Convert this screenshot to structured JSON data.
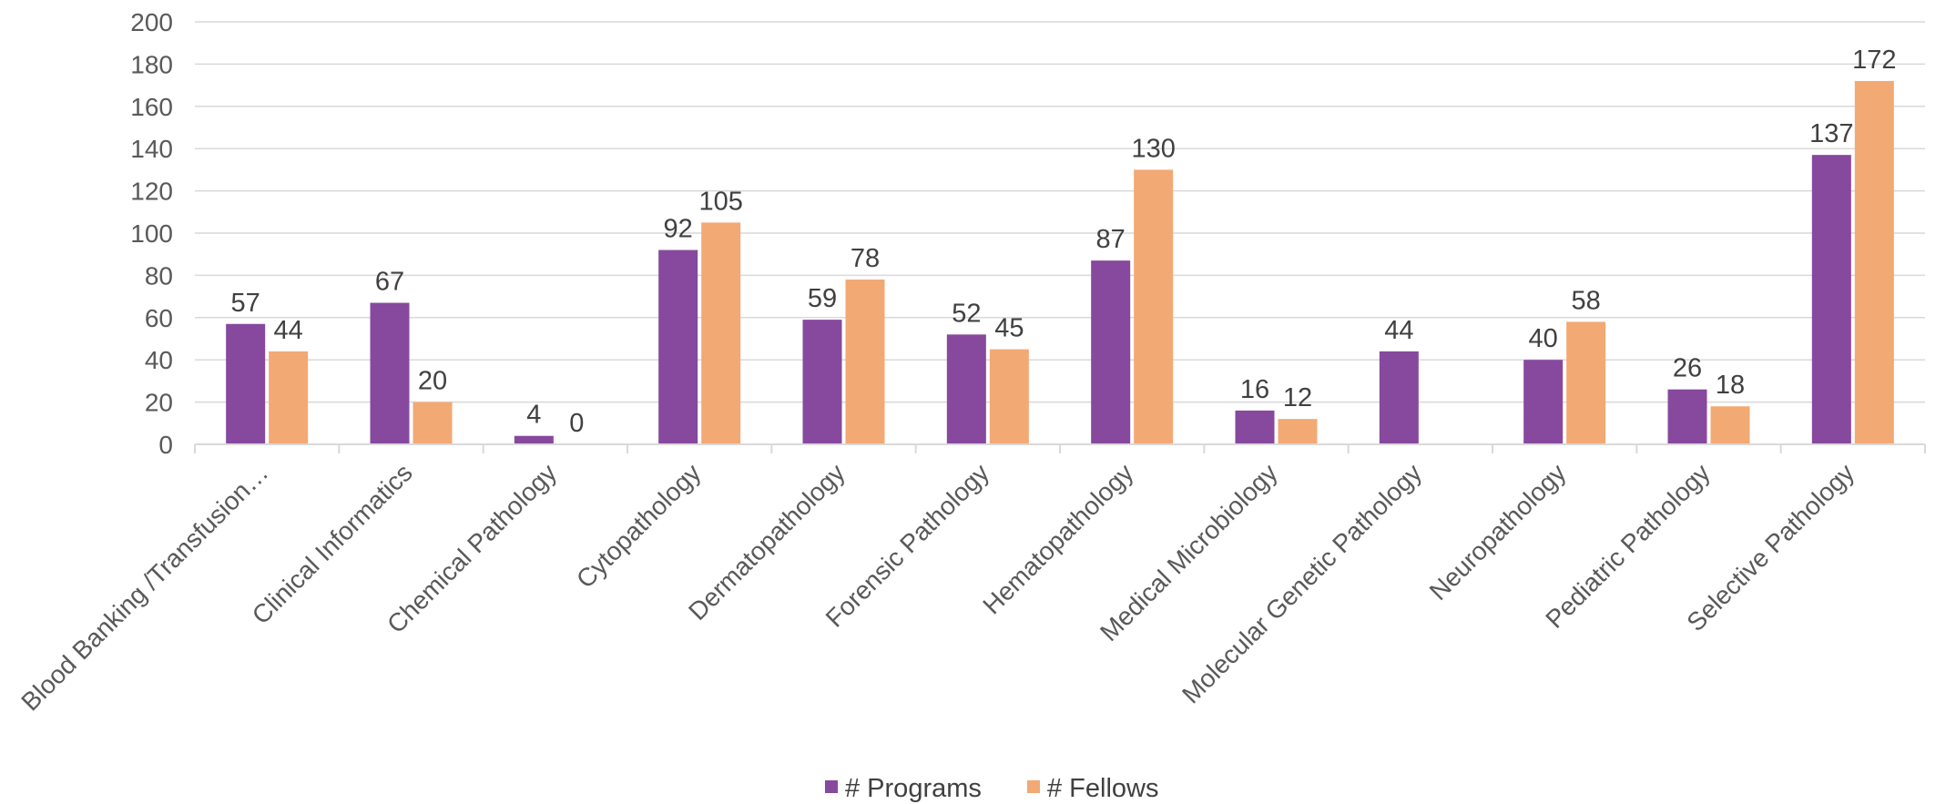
{
  "chart_data": {
    "type": "bar",
    "categories": [
      "Blood Banking /Transfusion…",
      "Clinical Informatics",
      "Chemical Pathology",
      "Cytopathology",
      "Dermatopathology",
      "Forensic Pathology",
      "Hematopathology",
      "Medical Microbiology",
      "Molecular Genetic Pathology",
      "Neuropathology",
      "Pediatric Pathology",
      "Selective Pathology"
    ],
    "series": [
      {
        "name": "# Programs",
        "color": "#86499d",
        "values": [
          57,
          67,
          4,
          92,
          59,
          52,
          87,
          16,
          44,
          40,
          26,
          137
        ],
        "labels": [
          "57",
          "67",
          "4",
          "92",
          "59",
          "52",
          "87",
          "16",
          "44",
          "40",
          "26",
          "137"
        ]
      },
      {
        "name": "# Fellows",
        "color": "#f2a974",
        "values": [
          44,
          20,
          0,
          null,
          78,
          45,
          130,
          12,
          null,
          58,
          18,
          172
        ],
        "labels": [
          "44",
          "20",
          "0",
          "105",
          "78",
          "45",
          "130",
          "12",
          "",
          "58",
          "18",
          "172"
        ]
      }
    ],
    "fellows_cytopathology": 105,
    "ylim": [
      0,
      200
    ],
    "yticks": [
      "0",
      "20",
      "40",
      "60",
      "80",
      "100",
      "120",
      "140",
      "160",
      "180",
      "200"
    ],
    "grid": true,
    "legend": "bottom",
    "title": "",
    "xlabel": "",
    "ylabel": ""
  }
}
